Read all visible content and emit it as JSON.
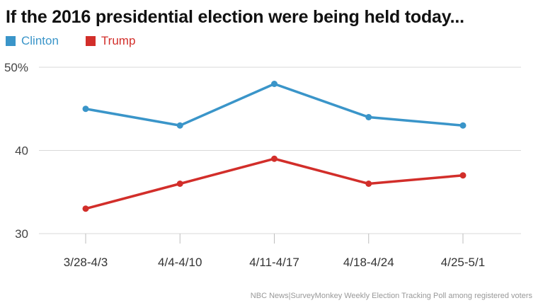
{
  "chart_data": {
    "type": "line",
    "title": "If the 2016 presidential election were being held today...",
    "categories": [
      "3/28-4/3",
      "4/4-4/10",
      "4/11-4/17",
      "4/18-4/24",
      "4/25-5/1"
    ],
    "series": [
      {
        "name": "Clinton",
        "color": "#3a95c9",
        "values": [
          45,
          43,
          48,
          44,
          43
        ]
      },
      {
        "name": "Trump",
        "color": "#d22e2a",
        "values": [
          33,
          36,
          39,
          36,
          37
        ]
      }
    ],
    "ylim": [
      30,
      50
    ],
    "yticks": [
      {
        "value": 50,
        "label": "50%"
      },
      {
        "value": 40,
        "label": "40"
      },
      {
        "value": 30,
        "label": "30"
      }
    ],
    "grid": true,
    "legend": "top-left",
    "source": "NBC News|SurveyMonkey Weekly Election Tracking Poll among registered voters"
  }
}
